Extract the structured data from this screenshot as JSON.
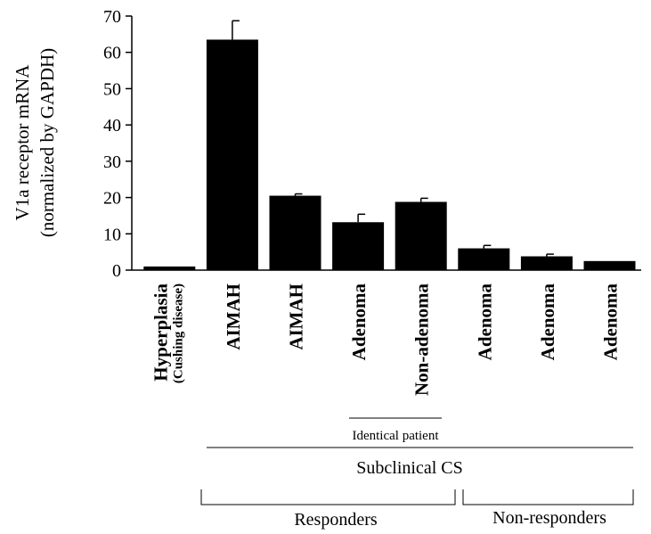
{
  "chart_data": {
    "type": "bar",
    "ylabel_line1": "V1a receptor mRNA",
    "ylabel_line2": "(normalized by GAPDH)",
    "ylim": [
      0,
      70
    ],
    "yticks": [
      "0",
      "10",
      "20",
      "30",
      "40",
      "50",
      "60",
      "70"
    ],
    "categories": [
      {
        "main": "Hyperplasia",
        "sub": "(Cushing disease)"
      },
      {
        "main": "AIMAH",
        "sub": ""
      },
      {
        "main": "AIMAH",
        "sub": ""
      },
      {
        "main": "Adenoma",
        "sub": ""
      },
      {
        "main": "Non-adenoma",
        "sub": ""
      },
      {
        "main": "Adenoma",
        "sub": ""
      },
      {
        "main": "Adenoma",
        "sub": ""
      },
      {
        "main": "Adenoma",
        "sub": ""
      }
    ],
    "values": [
      1.0,
      63.5,
      20.5,
      13.2,
      18.8,
      6.0,
      3.8,
      2.5
    ],
    "errors": [
      0,
      5.2,
      0.5,
      2.2,
      1.0,
      0.8,
      0.6,
      0
    ],
    "grid": false,
    "legend": "none",
    "bar_color": "#000000",
    "annotations": {
      "identical_patient": "Identical patient",
      "subclinical": "Subclinical CS",
      "responders": "Responders",
      "non_responders": "Non-responders"
    }
  }
}
